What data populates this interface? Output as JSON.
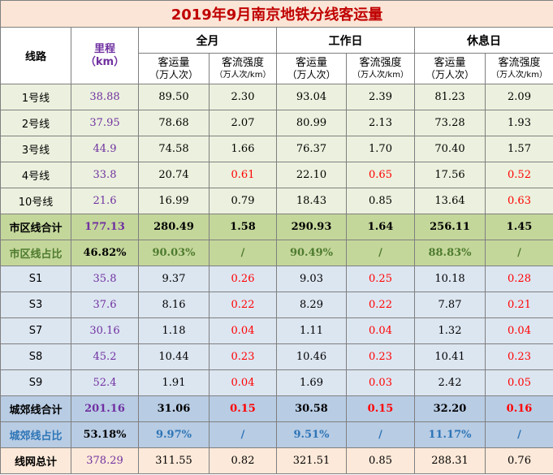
{
  "title": "2019年9月南京地铁分线客运量",
  "header": {
    "line": "线路",
    "km_label": "里程",
    "km_unit": "（km）",
    "groups": [
      "全月",
      "工作日",
      "休息日"
    ],
    "volume_label": "客运量",
    "volume_unit": "（万人次）",
    "intensity_label": "客流强度",
    "intensity_unit": "（万人次/km）"
  },
  "rows": [
    {
      "name": "1号线",
      "km": "38.88",
      "cells": [
        "89.50",
        "2.30",
        "93.04",
        "2.39",
        "81.23",
        "2.09"
      ],
      "red": []
    },
    {
      "name": "2号线",
      "km": "37.95",
      "cells": [
        "78.68",
        "2.07",
        "80.99",
        "2.13",
        "73.28",
        "1.93"
      ],
      "red": []
    },
    {
      "name": "3号线",
      "km": "44.9",
      "cells": [
        "74.58",
        "1.66",
        "76.37",
        "1.70",
        "70.40",
        "1.57"
      ],
      "red": []
    },
    {
      "name": "4号线",
      "km": "33.8",
      "cells": [
        "20.74",
        "0.61",
        "22.10",
        "0.65",
        "17.56",
        "0.52"
      ],
      "red": [
        1,
        3,
        5
      ]
    },
    {
      "name": "10号线",
      "km": "21.6",
      "cells": [
        "16.99",
        "0.79",
        "18.43",
        "0.85",
        "13.64",
        "0.63"
      ],
      "red": [
        5
      ]
    },
    {
      "name": "市区线合计",
      "km": "177.13",
      "cells": [
        "280.49",
        "1.58",
        "290.93",
        "1.64",
        "256.11",
        "1.45"
      ],
      "red": []
    },
    {
      "name": "市区线占比",
      "km": "46.82%",
      "cells": [
        "90.03%",
        "/",
        "90.49%",
        "/",
        "88.83%",
        "/"
      ],
      "red": []
    },
    {
      "name": "S1",
      "km": "35.8",
      "cells": [
        "9.37",
        "0.26",
        "9.03",
        "0.25",
        "10.18",
        "0.28"
      ],
      "red": [
        1,
        3,
        5
      ]
    },
    {
      "name": "S3",
      "km": "37.6",
      "cells": [
        "8.16",
        "0.22",
        "8.29",
        "0.22",
        "7.87",
        "0.21"
      ],
      "red": [
        1,
        3,
        5
      ]
    },
    {
      "name": "S7",
      "km": "30.16",
      "cells": [
        "1.18",
        "0.04",
        "1.11",
        "0.04",
        "1.32",
        "0.04"
      ],
      "red": [
        1,
        3,
        5
      ]
    },
    {
      "name": "S8",
      "km": "45.2",
      "cells": [
        "10.44",
        "0.23",
        "10.46",
        "0.23",
        "10.41",
        "0.23"
      ],
      "red": [
        1,
        3,
        5
      ]
    },
    {
      "name": "S9",
      "km": "52.4",
      "cells": [
        "1.91",
        "0.04",
        "1.69",
        "0.03",
        "2.42",
        "0.05"
      ],
      "red": [
        1,
        3,
        5
      ]
    },
    {
      "name": "城郊线合计",
      "km": "201.16",
      "cells": [
        "31.06",
        "0.15",
        "30.58",
        "0.15",
        "32.20",
        "0.16"
      ],
      "red": [
        1,
        3,
        5
      ]
    },
    {
      "name": "城郊线占比",
      "km": "53.18%",
      "cells": [
        "9.97%",
        "/",
        "9.51%",
        "/",
        "11.17%",
        "/"
      ],
      "red": []
    },
    {
      "name": "线网总计",
      "km": "378.29",
      "cells": [
        "311.55",
        "0.82",
        "321.51",
        "0.85",
        "288.31",
        "0.76"
      ],
      "red": []
    }
  ]
}
